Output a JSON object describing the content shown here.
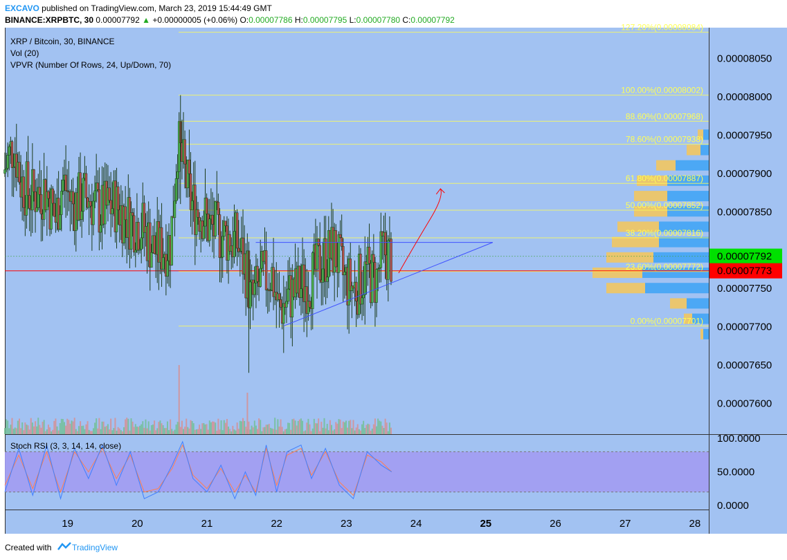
{
  "header": {
    "publisher": "EXCAVO",
    "published_text": "published on TradingView.com, March 23, 2019 15:44:49 GMT",
    "symbol": "BINANCE:XRPBTC, 30",
    "last": "0.00007792",
    "change_arrow": "▲",
    "change": "+0.00000005 (+0.06%)",
    "o_label": "O:",
    "o": "0.00007786",
    "h_label": "H:",
    "h": "0.00007795",
    "l_label": "L:",
    "l": "0.00007780",
    "c_label": "C:",
    "c": "0.00007792"
  },
  "legend": {
    "main": "XRP / Bitcoin, 30, BINANCE",
    "vol": "Vol (20)",
    "vpvr": "VPVR (Number Of Rows, 24, Up/Down, 70)",
    "stoch": "Stoch RSI (3, 3, 14, 14, close)"
  },
  "footer": {
    "created": "Created with",
    "brand": "TradingView"
  },
  "colors": {
    "background": "#a2c2f2",
    "up": "#4caf50",
    "down": "#b2504e",
    "fib": "#ffff55",
    "red_line": "#ff0000",
    "trend_blue": "#3f51ff",
    "last_price_tag": "#00e000",
    "red_price_tag": "#ff0000",
    "stoch_band": "#a29cf2",
    "stoch_k": "#3f7fff",
    "stoch_d": "#ff7f50"
  },
  "chart_data": {
    "type": "candlestick",
    "title": "XRP / Bitcoin, 30, BINANCE",
    "x_ticks": [
      "19",
      "20",
      "21",
      "22",
      "23",
      "24",
      "25",
      "26",
      "27",
      "28"
    ],
    "x_tick_bold": "25",
    "y_ticks": [
      "0.00008050",
      "0.00008000",
      "0.00007950",
      "0.00007900",
      "0.00007850",
      "0.00007750",
      "0.00007700",
      "0.00007650",
      "0.00007600"
    ],
    "y_range": [
      7.56e-05,
      8.09e-05
    ],
    "x_range_days": [
      18.1,
      28.2
    ],
    "current_price": {
      "label": "0.00007792",
      "value": 7.792e-05
    },
    "red_price": {
      "label": "0.00007773",
      "value": 7.773e-05
    },
    "fib_levels": [
      {
        "label": "127.20%(0.00008084)",
        "value": 8.084e-05
      },
      {
        "label": "100.00%(0.00008002)",
        "value": 8.002e-05
      },
      {
        "label": "88.60%(0.00007968)",
        "value": 7.968e-05
      },
      {
        "label": "78.60%(0.00007938)",
        "value": 7.938e-05
      },
      {
        "label": "61.80%(0.00007887)",
        "value": 7.887e-05
      },
      {
        "label": "50.00%(0.00007852)",
        "value": 7.852e-05
      },
      {
        "label": "38.20%(0.00007816)",
        "value": 7.816e-05
      },
      {
        "label": "23.60%(0.00007772)",
        "value": 7.772e-05
      },
      {
        "label": "0.00%(0.00007701)",
        "value": 7.701e-05
      }
    ],
    "triangle": {
      "top": {
        "x1": 21.7,
        "y1": 7.81e-05,
        "x2": 25.1,
        "y2": 7.81e-05
      },
      "bottom": {
        "x1": 22.1,
        "y1": 7.701e-05,
        "x2": 25.1,
        "y2": 7.81e-05
      }
    },
    "projection_arrow": [
      [
        23.75,
        7.77e-05
      ],
      [
        24.0,
        7.81e-05
      ],
      [
        24.2,
        7.84e-05
      ],
      [
        24.35,
        7.88e-05
      ]
    ],
    "price_path": [
      [
        18.1,
        7.9e-05
      ],
      [
        18.25,
        7.94e-05
      ],
      [
        18.35,
        7.89e-05
      ],
      [
        18.5,
        7.87e-05
      ],
      [
        18.7,
        7.88e-05
      ],
      [
        18.85,
        7.84e-05
      ],
      [
        18.95,
        7.89e-05
      ],
      [
        19.1,
        7.86e-05
      ],
      [
        19.3,
        7.87e-05
      ],
      [
        19.5,
        7.85e-05
      ],
      [
        19.7,
        7.86e-05
      ],
      [
        19.9,
        7.84e-05
      ],
      [
        20.1,
        7.83e-05
      ],
      [
        20.25,
        7.8e-05
      ],
      [
        20.35,
        7.8e-05
      ],
      [
        20.5,
        7.81e-05
      ],
      [
        20.6,
        7.94e-05
      ],
      [
        20.7,
        7.9e-05
      ],
      [
        20.8,
        7.86e-05
      ],
      [
        20.95,
        7.85e-05
      ],
      [
        21.05,
        7.83e-05
      ],
      [
        21.25,
        7.82e-05
      ],
      [
        21.45,
        7.81e-05
      ],
      [
        21.6,
        7.77e-05
      ],
      [
        21.65,
        7.73e-05
      ],
      [
        21.8,
        7.76e-05
      ],
      [
        21.95,
        7.77e-05
      ],
      [
        22.05,
        7.72e-05
      ],
      [
        22.2,
        7.74e-05
      ],
      [
        22.35,
        7.75e-05
      ],
      [
        22.5,
        7.76e-05
      ],
      [
        22.7,
        7.79e-05
      ],
      [
        22.85,
        7.8e-05
      ],
      [
        23.0,
        7.76e-05
      ],
      [
        23.15,
        7.75e-05
      ],
      [
        23.3,
        7.77e-05
      ],
      [
        23.45,
        7.76e-05
      ],
      [
        23.55,
        7.8e-05
      ],
      [
        23.65,
        7.79e-05
      ]
    ],
    "vpvr_rows": [
      {
        "price": 7.95e-05,
        "up": 0.2,
        "down": 0.2
      },
      {
        "price": 7.93e-05,
        "up": 0.5,
        "down": 0.3
      },
      {
        "price": 7.91e-05,
        "up": 0.7,
        "down": 1.2
      },
      {
        "price": 7.89e-05,
        "up": 1.1,
        "down": 1.5
      },
      {
        "price": 7.87e-05,
        "up": 1.2,
        "down": 1.5
      },
      {
        "price": 7.85e-05,
        "up": 1.2,
        "down": 1.5
      },
      {
        "price": 7.83e-05,
        "up": 1.5,
        "down": 1.8
      },
      {
        "price": 7.81e-05,
        "up": 1.7,
        "down": 1.8
      },
      {
        "price": 7.79e-05,
        "up": 1.7,
        "down": 2.0
      },
      {
        "price": 7.77e-05,
        "up": 1.8,
        "down": 2.4
      },
      {
        "price": 7.75e-05,
        "up": 1.4,
        "down": 2.3
      },
      {
        "price": 7.73e-05,
        "up": 0.6,
        "down": 0.8
      },
      {
        "price": 7.71e-05,
        "up": 0.3,
        "down": 0.6
      },
      {
        "price": 7.69e-05,
        "up": 0.1,
        "down": 0.2
      }
    ],
    "stoch_rsi": {
      "y_ticks": [
        "100.0000",
        "50.0000",
        "0.0000"
      ],
      "band": [
        20,
        80
      ],
      "k_path": [
        [
          18.1,
          20
        ],
        [
          18.3,
          85
        ],
        [
          18.5,
          15
        ],
        [
          18.7,
          90
        ],
        [
          18.9,
          10
        ],
        [
          19.1,
          85
        ],
        [
          19.3,
          40
        ],
        [
          19.5,
          90
        ],
        [
          19.7,
          30
        ],
        [
          19.9,
          80
        ],
        [
          20.1,
          10
        ],
        [
          20.3,
          20
        ],
        [
          20.5,
          60
        ],
        [
          20.65,
          95
        ],
        [
          20.8,
          40
        ],
        [
          21.0,
          20
        ],
        [
          21.2,
          60
        ],
        [
          21.4,
          10
        ],
        [
          21.55,
          50
        ],
        [
          21.7,
          15
        ],
        [
          21.85,
          90
        ],
        [
          22.0,
          20
        ],
        [
          22.15,
          80
        ],
        [
          22.35,
          90
        ],
        [
          22.5,
          40
        ],
        [
          22.7,
          85
        ],
        [
          22.9,
          30
        ],
        [
          23.1,
          10
        ],
        [
          23.3,
          80
        ],
        [
          23.5,
          60
        ],
        [
          23.65,
          50
        ]
      ],
      "d_path": [
        [
          18.1,
          30
        ],
        [
          18.3,
          75
        ],
        [
          18.5,
          25
        ],
        [
          18.7,
          80
        ],
        [
          18.9,
          20
        ],
        [
          19.1,
          80
        ],
        [
          19.3,
          50
        ],
        [
          19.5,
          85
        ],
        [
          19.7,
          40
        ],
        [
          19.9,
          75
        ],
        [
          20.1,
          20
        ],
        [
          20.3,
          25
        ],
        [
          20.5,
          55
        ],
        [
          20.65,
          90
        ],
        [
          20.8,
          45
        ],
        [
          21.0,
          25
        ],
        [
          21.2,
          55
        ],
        [
          21.4,
          20
        ],
        [
          21.55,
          45
        ],
        [
          21.7,
          20
        ],
        [
          21.85,
          85
        ],
        [
          22.0,
          30
        ],
        [
          22.15,
          75
        ],
        [
          22.35,
          85
        ],
        [
          22.5,
          45
        ],
        [
          22.7,
          80
        ],
        [
          22.9,
          35
        ],
        [
          23.1,
          15
        ],
        [
          23.3,
          75
        ],
        [
          23.5,
          65
        ],
        [
          23.65,
          50
        ]
      ]
    }
  }
}
